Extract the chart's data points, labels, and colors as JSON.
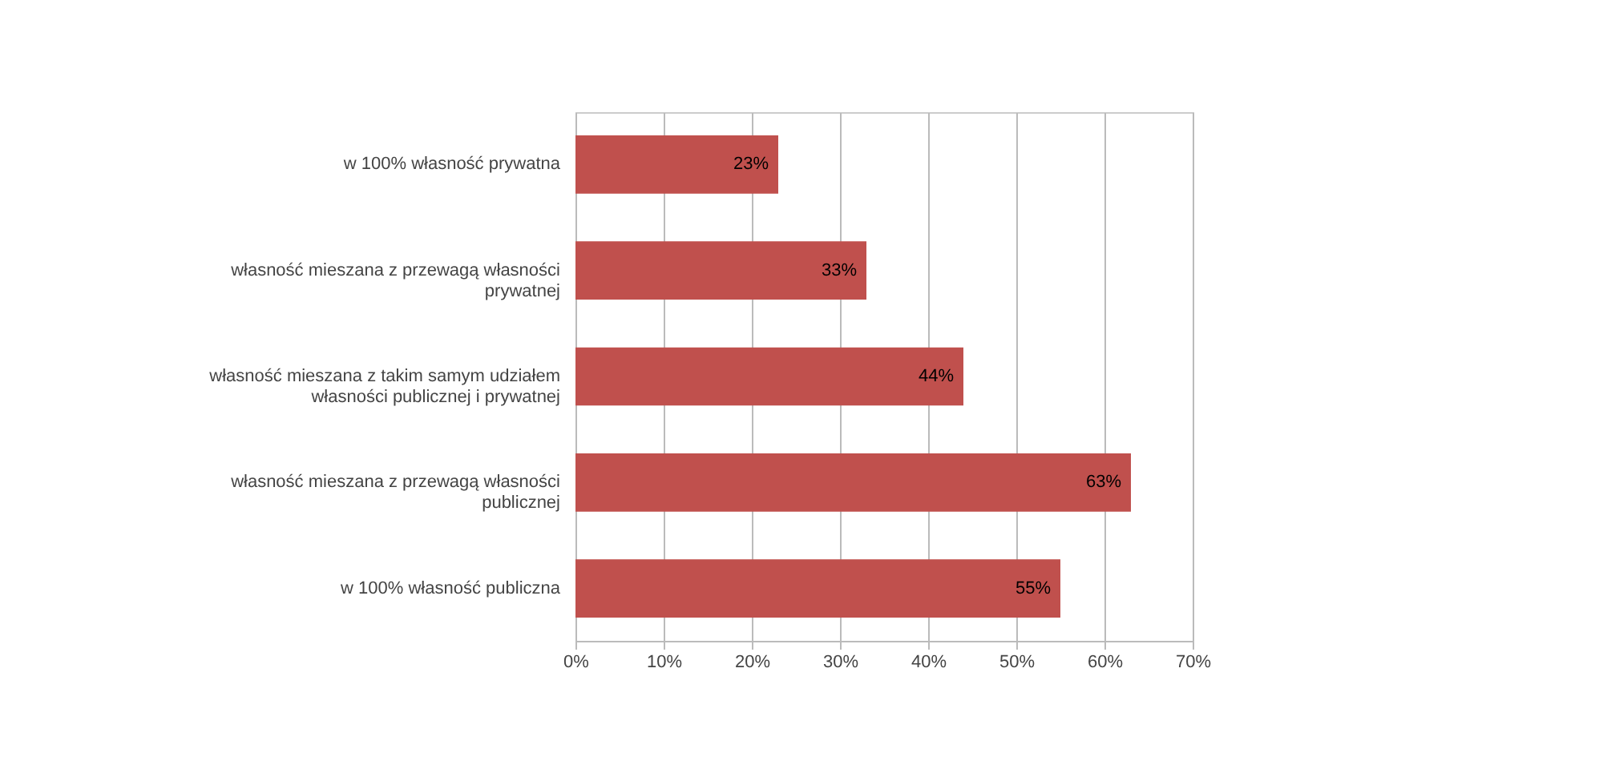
{
  "chart_data": {
    "type": "bar",
    "orientation": "horizontal",
    "categories": [
      "w 100% własność prywatna",
      "własność mieszana z przewagą własności prywatnej",
      "własność mieszana z takim samym udziałem własności publicznej i prywatnej",
      "własność mieszana z przewagą własności publicznej",
      "w 100% własność publiczna"
    ],
    "values": [
      23,
      33,
      44,
      63,
      55
    ],
    "color": "#c0504d",
    "value_labels": [
      "23%",
      "33%",
      "44%",
      "63%",
      "55%"
    ],
    "xlim": [
      0,
      70
    ],
    "xticks": [
      {
        "value": 0,
        "label": "0%"
      },
      {
        "value": 10,
        "label": "10%"
      },
      {
        "value": 20,
        "label": "20%"
      },
      {
        "value": 30,
        "label": "30%"
      },
      {
        "value": 40,
        "label": "40%"
      },
      {
        "value": 50,
        "label": "50%"
      },
      {
        "value": 60,
        "label": "60%"
      },
      {
        "value": 70,
        "label": "70%"
      }
    ],
    "grid": "x"
  }
}
